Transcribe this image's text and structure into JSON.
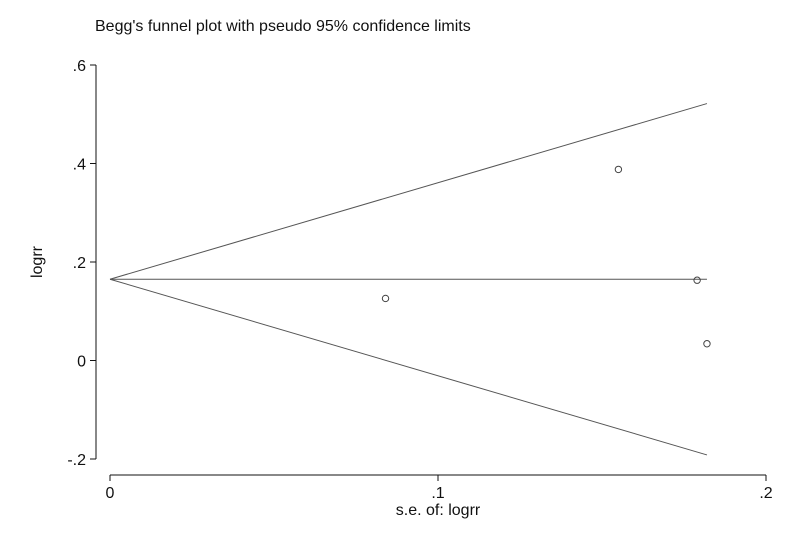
{
  "chart_data": {
    "type": "scatter",
    "title": "Begg's funnel plot with pseudo 95% confidence limits",
    "xlabel": "s.e. of: logrr",
    "ylabel": "logrr",
    "xlim": [
      0,
      0.2
    ],
    "ylim": [
      -0.2,
      0.6
    ],
    "x_ticks": [
      {
        "value": 0,
        "label": "0"
      },
      {
        "value": 0.1,
        "label": ".1"
      },
      {
        "value": 0.2,
        "label": ".2"
      }
    ],
    "y_ticks": [
      {
        "value": -0.2,
        "label": "-.2"
      },
      {
        "value": 0,
        "label": "0"
      },
      {
        "value": 0.2,
        "label": ".2"
      },
      {
        "value": 0.4,
        "label": ".4"
      },
      {
        "value": 0.6,
        "label": ".6"
      }
    ],
    "grid": false,
    "pooled_estimate": 0.165,
    "max_se": 0.182,
    "points": [
      {
        "x": 0.084,
        "y": 0.126
      },
      {
        "x": 0.155,
        "y": 0.388
      },
      {
        "x": 0.179,
        "y": 0.163
      },
      {
        "x": 0.182,
        "y": 0.034
      }
    ],
    "colors": {
      "line": "#555555",
      "point": "#444444",
      "axis": "#111111"
    }
  }
}
